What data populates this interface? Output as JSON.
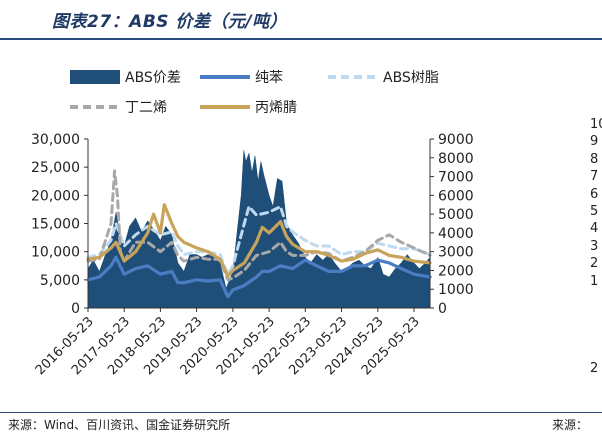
{
  "figure": {
    "title": "图表27：ABS 价差（元/吨）",
    "source": "来源：Wind、百川资讯、国金证券研究所",
    "source_right": "来源：",
    "edge_glyphs": [
      "10",
      "9",
      "8",
      "7",
      "6",
      "5",
      "4",
      "3",
      "2",
      "1",
      "",
      "",
      "",
      "",
      "2"
    ]
  },
  "chart_data": {
    "type": "area",
    "title": "",
    "xlabel": "",
    "ylabel": "",
    "y2label": "",
    "x_tick_labels": [
      "2016-05-23",
      "2017-05-23",
      "2018-05-23",
      "2019-05-23",
      "2020-05-23",
      "2021-05-23",
      "2022-05-23",
      "2023-05-23",
      "2024-05-23",
      "2025-05-23"
    ],
    "xlim": [
      "2016-05-23",
      "2025-10-31"
    ],
    "ylim": [
      0,
      30000
    ],
    "y_ticks": [
      0,
      5000,
      10000,
      15000,
      20000,
      25000,
      30000
    ],
    "y_tick_labels": [
      "0",
      "5,000",
      "10,000",
      "15,000",
      "20,000",
      "25,000",
      "30,000"
    ],
    "y2lim": [
      0,
      9000
    ],
    "y2_ticks": [
      0,
      1000,
      2000,
      3000,
      4000,
      5000,
      6000,
      7000,
      8000,
      9000
    ],
    "y2_tick_labels": [
      "0",
      "1000",
      "2000",
      "3000",
      "4000",
      "5000",
      "6000",
      "7000",
      "8000",
      "9000"
    ],
    "grid": false,
    "legend_position": "top",
    "series": [
      {
        "name": "ABS价差",
        "kind": "area",
        "axis": "left",
        "color": "#1f4e79",
        "points": [
          [
            "2016-05-23",
            7000
          ],
          [
            "2016-07-15",
            8500
          ],
          [
            "2016-09-15",
            6500
          ],
          [
            "2016-11-15",
            9500
          ],
          [
            "2017-01-10",
            12000
          ],
          [
            "2017-03-01",
            17000
          ],
          [
            "2017-04-01",
            14000
          ],
          [
            "2017-05-23",
            11000
          ],
          [
            "2017-07-15",
            14500
          ],
          [
            "2017-09-15",
            16000
          ],
          [
            "2017-11-15",
            13500
          ],
          [
            "2018-01-15",
            15500
          ],
          [
            "2018-03-15",
            14000
          ],
          [
            "2018-05-23",
            12000
          ],
          [
            "2018-07-15",
            14500
          ],
          [
            "2018-09-15",
            13000
          ],
          [
            "2018-11-15",
            8000
          ],
          [
            "2019-01-15",
            6500
          ],
          [
            "2019-03-15",
            9500
          ],
          [
            "2019-05-23",
            9500
          ],
          [
            "2019-07-15",
            9000
          ],
          [
            "2019-09-15",
            9500
          ],
          [
            "2019-11-15",
            9000
          ],
          [
            "2020-01-15",
            8000
          ],
          [
            "2020-03-15",
            3500
          ],
          [
            "2020-05-23",
            6500
          ],
          [
            "2020-07-01",
            13000
          ],
          [
            "2020-08-15",
            20000
          ],
          [
            "2020-09-10",
            28000
          ],
          [
            "2020-10-01",
            26000
          ],
          [
            "2020-11-01",
            27500
          ],
          [
            "2020-12-01",
            24000
          ],
          [
            "2021-01-01",
            27000
          ],
          [
            "2021-02-01",
            22500
          ],
          [
            "2021-03-01",
            26000
          ],
          [
            "2021-04-01",
            23500
          ],
          [
            "2021-05-23",
            20000
          ],
          [
            "2021-07-01",
            18000
          ],
          [
            "2021-08-15",
            23000
          ],
          [
            "2021-10-01",
            22500
          ],
          [
            "2021-11-15",
            15000
          ],
          [
            "2022-01-15",
            13000
          ],
          [
            "2022-03-15",
            11500
          ],
          [
            "2022-05-23",
            9000
          ],
          [
            "2022-07-15",
            8000
          ],
          [
            "2022-09-15",
            9500
          ],
          [
            "2022-11-15",
            8500
          ],
          [
            "2023-01-15",
            9500
          ],
          [
            "2023-03-15",
            8000
          ],
          [
            "2023-05-23",
            6500
          ],
          [
            "2023-07-15",
            7000
          ],
          [
            "2023-09-15",
            8000
          ],
          [
            "2023-11-15",
            8500
          ],
          [
            "2024-01-15",
            7500
          ],
          [
            "2024-03-15",
            7000
          ],
          [
            "2024-05-23",
            9000
          ],
          [
            "2024-07-15",
            6000
          ],
          [
            "2024-09-15",
            5500
          ],
          [
            "2024-11-15",
            7000
          ],
          [
            "2025-01-15",
            8000
          ],
          [
            "2025-03-15",
            9500
          ],
          [
            "2025-05-23",
            8000
          ],
          [
            "2025-07-15",
            7000
          ],
          [
            "2025-09-15",
            8000
          ],
          [
            "2025-10-31",
            9000
          ]
        ]
      },
      {
        "name": "纯苯",
        "kind": "line",
        "axis": "left",
        "color": "#4a7dc4",
        "points": [
          [
            "2016-05-23",
            5000
          ],
          [
            "2016-09-15",
            5500
          ],
          [
            "2017-01-10",
            7500
          ],
          [
            "2017-03-01",
            9000
          ],
          [
            "2017-05-23",
            6000
          ],
          [
            "2017-09-15",
            7000
          ],
          [
            "2018-01-15",
            7500
          ],
          [
            "2018-05-23",
            6000
          ],
          [
            "2018-09-15",
            6500
          ],
          [
            "2018-11-15",
            4500
          ],
          [
            "2019-01-15",
            4500
          ],
          [
            "2019-05-23",
            5000
          ],
          [
            "2019-09-15",
            4800
          ],
          [
            "2020-01-15",
            5000
          ],
          [
            "2020-04-01",
            2000
          ],
          [
            "2020-05-23",
            3200
          ],
          [
            "2020-09-15",
            4000
          ],
          [
            "2021-01-15",
            5500
          ],
          [
            "2021-03-15",
            6500
          ],
          [
            "2021-05-23",
            6500
          ],
          [
            "2021-09-15",
            7500
          ],
          [
            "2022-01-15",
            7000
          ],
          [
            "2022-05-23",
            8500
          ],
          [
            "2022-09-15",
            7500
          ],
          [
            "2023-01-15",
            6500
          ],
          [
            "2023-05-23",
            6500
          ],
          [
            "2023-09-15",
            7500
          ],
          [
            "2024-01-15",
            7500
          ],
          [
            "2024-05-23",
            8500
          ],
          [
            "2024-09-15",
            8000
          ],
          [
            "2025-01-15",
            7000
          ],
          [
            "2025-05-23",
            6000
          ],
          [
            "2025-10-31",
            5500
          ]
        ]
      },
      {
        "name": "ABS树脂",
        "kind": "dashed",
        "axis": "left",
        "color": "#bfd9ee",
        "points": [
          [
            "2016-05-23",
            9000
          ],
          [
            "2016-09-15",
            9500
          ],
          [
            "2017-01-10",
            12000
          ],
          [
            "2017-03-01",
            15000
          ],
          [
            "2017-05-23",
            11000
          ],
          [
            "2017-09-15",
            13000
          ],
          [
            "2018-01-15",
            14500
          ],
          [
            "2018-05-23",
            13000
          ],
          [
            "2018-09-15",
            13500
          ],
          [
            "2018-11-15",
            11000
          ],
          [
            "2019-01-15",
            9500
          ],
          [
            "2019-05-23",
            10000
          ],
          [
            "2019-09-15",
            10000
          ],
          [
            "2020-01-15",
            9500
          ],
          [
            "2020-04-01",
            6000
          ],
          [
            "2020-05-23",
            7500
          ],
          [
            "2020-09-15",
            15000
          ],
          [
            "2020-11-01",
            18000
          ],
          [
            "2021-01-15",
            16500
          ],
          [
            "2021-05-23",
            17000
          ],
          [
            "2021-09-15",
            18000
          ],
          [
            "2021-11-15",
            14500
          ],
          [
            "2022-01-15",
            13500
          ],
          [
            "2022-05-23",
            12000
          ],
          [
            "2022-09-15",
            11000
          ],
          [
            "2023-01-15",
            11000
          ],
          [
            "2023-05-23",
            9500
          ],
          [
            "2023-09-15",
            10000
          ],
          [
            "2024-01-15",
            10000
          ],
          [
            "2024-05-23",
            11500
          ],
          [
            "2024-09-15",
            11000
          ],
          [
            "2025-01-15",
            10500
          ],
          [
            "2025-05-23",
            10500
          ],
          [
            "2025-10-31",
            9500
          ]
        ]
      },
      {
        "name": "丁二烯",
        "kind": "dashed",
        "axis": "right",
        "color": "#a8a8a8",
        "points": [
          [
            "2016-05-23",
            2500
          ],
          [
            "2016-09-15",
            2600
          ],
          [
            "2017-01-10",
            4500
          ],
          [
            "2017-02-15",
            7300
          ],
          [
            "2017-03-15",
            6000
          ],
          [
            "2017-04-15",
            3000
          ],
          [
            "2017-05-23",
            2500
          ],
          [
            "2017-09-15",
            3500
          ],
          [
            "2018-01-15",
            3500
          ],
          [
            "2018-05-23",
            3000
          ],
          [
            "2018-09-15",
            3500
          ],
          [
            "2018-11-15",
            2800
          ],
          [
            "2019-01-15",
            2500
          ],
          [
            "2019-05-23",
            2700
          ],
          [
            "2019-09-15",
            2600
          ],
          [
            "2020-01-15",
            2600
          ],
          [
            "2020-04-01",
            1500
          ],
          [
            "2020-05-23",
            1600
          ],
          [
            "2020-09-15",
            2000
          ],
          [
            "2021-01-15",
            2800
          ],
          [
            "2021-05-23",
            3000
          ],
          [
            "2021-09-15",
            3500
          ],
          [
            "2021-11-15",
            3000
          ],
          [
            "2022-01-15",
            2800
          ],
          [
            "2022-05-23",
            2800
          ],
          [
            "2022-09-15",
            3000
          ],
          [
            "2023-01-15",
            2900
          ],
          [
            "2023-05-23",
            2500
          ],
          [
            "2023-09-15",
            2700
          ],
          [
            "2024-01-15",
            3000
          ],
          [
            "2024-05-23",
            3600
          ],
          [
            "2024-09-15",
            3900
          ],
          [
            "2025-01-15",
            3500
          ],
          [
            "2025-05-23",
            3200
          ],
          [
            "2025-10-31",
            2800
          ]
        ]
      },
      {
        "name": "丙烯腈",
        "kind": "line",
        "axis": "right",
        "color": "#c8a45a",
        "points": [
          [
            "2016-05-23",
            2600
          ],
          [
            "2016-09-15",
            2700
          ],
          [
            "2017-01-10",
            3200
          ],
          [
            "2017-03-01",
            3500
          ],
          [
            "2017-05-23",
            2500
          ],
          [
            "2017-09-15",
            3000
          ],
          [
            "2018-01-15",
            4000
          ],
          [
            "2018-03-15",
            5000
          ],
          [
            "2018-05-23",
            4000
          ],
          [
            "2018-07-01",
            5500
          ],
          [
            "2018-09-15",
            4500
          ],
          [
            "2018-11-15",
            3800
          ],
          [
            "2019-01-15",
            3500
          ],
          [
            "2019-05-23",
            3200
          ],
          [
            "2019-09-15",
            3000
          ],
          [
            "2020-01-15",
            2600
          ],
          [
            "2020-04-01",
            1700
          ],
          [
            "2020-05-23",
            2000
          ],
          [
            "2020-09-15",
            2400
          ],
          [
            "2021-01-15",
            3500
          ],
          [
            "2021-03-15",
            4300
          ],
          [
            "2021-05-23",
            4000
          ],
          [
            "2021-09-15",
            4600
          ],
          [
            "2021-11-15",
            3800
          ],
          [
            "2022-01-15",
            3400
          ],
          [
            "2022-05-23",
            3000
          ],
          [
            "2022-09-15",
            3000
          ],
          [
            "2023-01-15",
            2800
          ],
          [
            "2023-05-23",
            2500
          ],
          [
            "2023-09-15",
            2600
          ],
          [
            "2024-01-15",
            2900
          ],
          [
            "2024-05-23",
            3100
          ],
          [
            "2024-09-15",
            2800
          ],
          [
            "2025-01-15",
            2700
          ],
          [
            "2025-05-23",
            2500
          ],
          [
            "2025-10-31",
            2400
          ]
        ]
      }
    ]
  }
}
